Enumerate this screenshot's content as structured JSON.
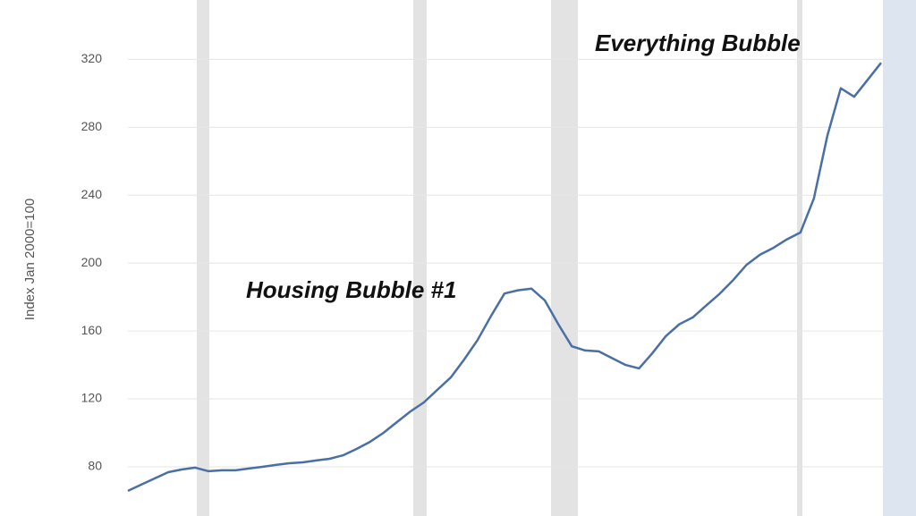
{
  "chart_data": {
    "type": "line",
    "y_axis_label": "Index Jan 2000=100",
    "annotations": [
      "Housing Bubble #1",
      "Everything Bubble"
    ],
    "series": [
      {
        "color": "#4a6fa5",
        "values": [
          65.8,
          69.5,
          73.2,
          76.8,
          78.4,
          79.5,
          77.4,
          77.9,
          77.9,
          79.0,
          80.0,
          81.1,
          82.1,
          82.6,
          83.7,
          84.7,
          86.8,
          90.5,
          94.7,
          100.0,
          106.3,
          112.6,
          117.9,
          125.3,
          132.6,
          143.2,
          154.7,
          168.9,
          182.1,
          184,
          185,
          178,
          164,
          151,
          148.5,
          148,
          144,
          140,
          138,
          147,
          157,
          164,
          168,
          175,
          182,
          190,
          199,
          205,
          209,
          214,
          218,
          238,
          275,
          303,
          298,
          308,
          318
        ]
      }
    ],
    "ylim": [
      51,
      355
    ],
    "yticks": [
      80,
      120,
      160,
      200,
      240,
      280,
      320
    ],
    "grid": true
  }
}
